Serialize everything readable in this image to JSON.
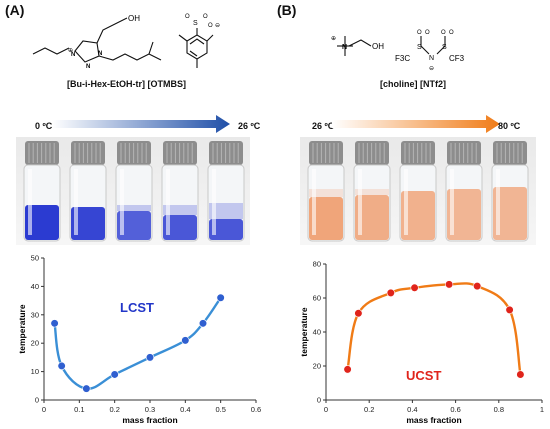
{
  "panels": [
    {
      "label": "(A)",
      "salt_label": "[Bu-i-Hex-EtOH-tr] [OTMBS]",
      "temp_start": "0 ºC",
      "temp_end": "26 ºC",
      "arrow_colors": [
        "#ffffff",
        "#1f4fa8"
      ],
      "liquid_color": "#2b3bd1",
      "chart_label": "LCST",
      "chart_label_color": "#2236c8"
    },
    {
      "label": "(B)",
      "salt_label": "[choline] [NTf2]",
      "temp_start": "26 ºC",
      "temp_end": "80 ºC",
      "arrow_colors": [
        "#ffffff",
        "#f07b16"
      ],
      "liquid_color": "#f0a57a",
      "chart_label": "UCST",
      "chart_label_color": "#e0241b"
    }
  ],
  "chemistry": {
    "oh": "OH",
    "plus": "⊕",
    "minus": "⊖",
    "n": "N",
    "s": "S",
    "o": "O",
    "cf3": "F3C",
    "cf3b": "CF3",
    "so3": "SO3"
  },
  "chart_data": [
    {
      "type": "line",
      "label": "LCST",
      "xlabel": "mass fraction",
      "ylabel": "temperature",
      "xlim": [
        0,
        0.6
      ],
      "ylim": [
        0,
        50
      ],
      "xticks": [
        "0",
        "0.1",
        "0.2",
        "0.3",
        "0.4",
        "0.5",
        "0.6"
      ],
      "yticks": [
        "0",
        "10",
        "20",
        "30",
        "40",
        "50"
      ],
      "x": [
        0.03,
        0.05,
        0.12,
        0.2,
        0.3,
        0.4,
        0.45,
        0.5
      ],
      "y": [
        27,
        12,
        4,
        9,
        15,
        21,
        27,
        36
      ],
      "line_color": "#3a8fd6",
      "marker_color": "#2f5fd0"
    },
    {
      "type": "line",
      "label": "UCST",
      "xlabel": "mass fraction",
      "ylabel": "temperature",
      "xlim": [
        0,
        1
      ],
      "ylim": [
        0,
        80
      ],
      "xticks": [
        "0",
        "0.2",
        "0.4",
        "0.6",
        "0.8",
        "1"
      ],
      "yticks": [
        "0",
        "20",
        "40",
        "60",
        "80"
      ],
      "x": [
        0.1,
        0.15,
        0.3,
        0.41,
        0.57,
        0.7,
        0.85,
        0.9
      ],
      "y": [
        18,
        51,
        63,
        66,
        68,
        67,
        53,
        15
      ],
      "line_color": "#f07b16",
      "marker_color": "#e0241b"
    }
  ]
}
